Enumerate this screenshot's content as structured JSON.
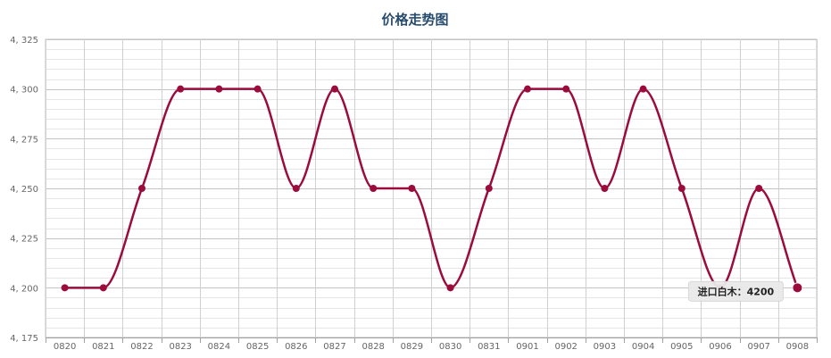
{
  "chart_data": {
    "type": "line",
    "title": "价格走势图",
    "xlabel": "",
    "ylabel": "",
    "categories": [
      "0820",
      "0821",
      "0822",
      "0823",
      "0824",
      "0825",
      "0826",
      "0827",
      "0828",
      "0829",
      "0830",
      "0831",
      "0901",
      "0902",
      "0903",
      "0904",
      "0905",
      "0906",
      "0907",
      "0908"
    ],
    "y_ticks": [
      "4, 175",
      "4, 200",
      "4, 225",
      "4, 250",
      "4, 275",
      "4, 300",
      "4, 325"
    ],
    "ylim": [
      4175,
      4325
    ],
    "grid": true,
    "series": [
      {
        "name": "进口白木",
        "values": [
          4200,
          4200,
          4250,
          4300,
          4300,
          4300,
          4250,
          4300,
          4250,
          4250,
          4200,
          4250,
          4300,
          4300,
          4250,
          4300,
          4250,
          4200,
          4250,
          4200
        ]
      }
    ],
    "tooltip": {
      "label": "进口白木：4200",
      "category": "0908"
    },
    "colors": {
      "series": "#9b0b3c",
      "grid": "#c8c8c8",
      "title": "#274b6d",
      "tooltip_bg": "#e9e9e9"
    }
  }
}
